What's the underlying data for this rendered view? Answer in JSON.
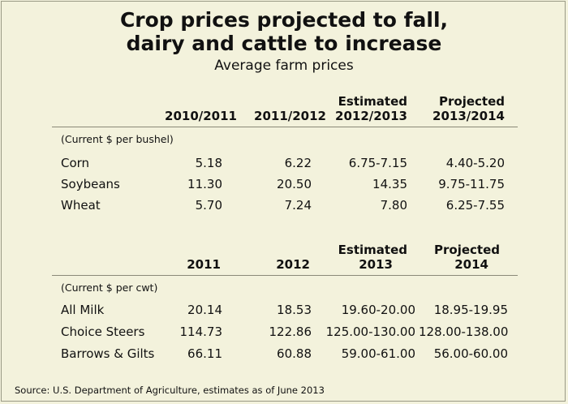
{
  "title_line1": "Crop prices projected to fall,",
  "title_line2": "dairy and cattle to increase",
  "subtitle": "Average farm prices",
  "source": "Source: U.S. Department of Agriculture, estimates as of June 2013",
  "chart_data": [
    {
      "type": "table",
      "columns": [
        {
          "top": "",
          "bottom": "2010/2011"
        },
        {
          "top": "",
          "bottom": "2011/2012"
        },
        {
          "top": "Estimated",
          "bottom": "2012/2013"
        },
        {
          "top": "Projected",
          "bottom": "2013/2014"
        }
      ],
      "unit": "(Current $ per bushel)",
      "rows": [
        {
          "label": "Corn",
          "values": [
            "5.18",
            "6.22",
            "6.75-7.15",
            "4.40-5.20"
          ]
        },
        {
          "label": "Soybeans",
          "values": [
            "11.30",
            "20.50",
            "14.35",
            "9.75-11.75"
          ]
        },
        {
          "label": "Wheat",
          "values": [
            "5.70",
            "7.24",
            "7.80",
            "6.25-7.55"
          ]
        }
      ]
    },
    {
      "type": "table",
      "columns": [
        {
          "top": "",
          "bottom": "2011"
        },
        {
          "top": "",
          "bottom": "2012"
        },
        {
          "top": "Estimated",
          "bottom": "2013"
        },
        {
          "top": "Projected",
          "bottom": "2014"
        }
      ],
      "unit": "(Current $ per cwt)",
      "rows": [
        {
          "label": "All Milk",
          "values": [
            "20.14",
            "18.53",
            "19.60-20.00",
            "18.95-19.95"
          ]
        },
        {
          "label": "Choice Steers",
          "values": [
            "114.73",
            "122.86",
            "125.00-130.00",
            "128.00-138.00"
          ]
        },
        {
          "label": "Barrows & Gilts",
          "values": [
            "66.11",
            "60.88",
            "59.00-61.00",
            "56.00-60.00"
          ]
        }
      ]
    }
  ]
}
